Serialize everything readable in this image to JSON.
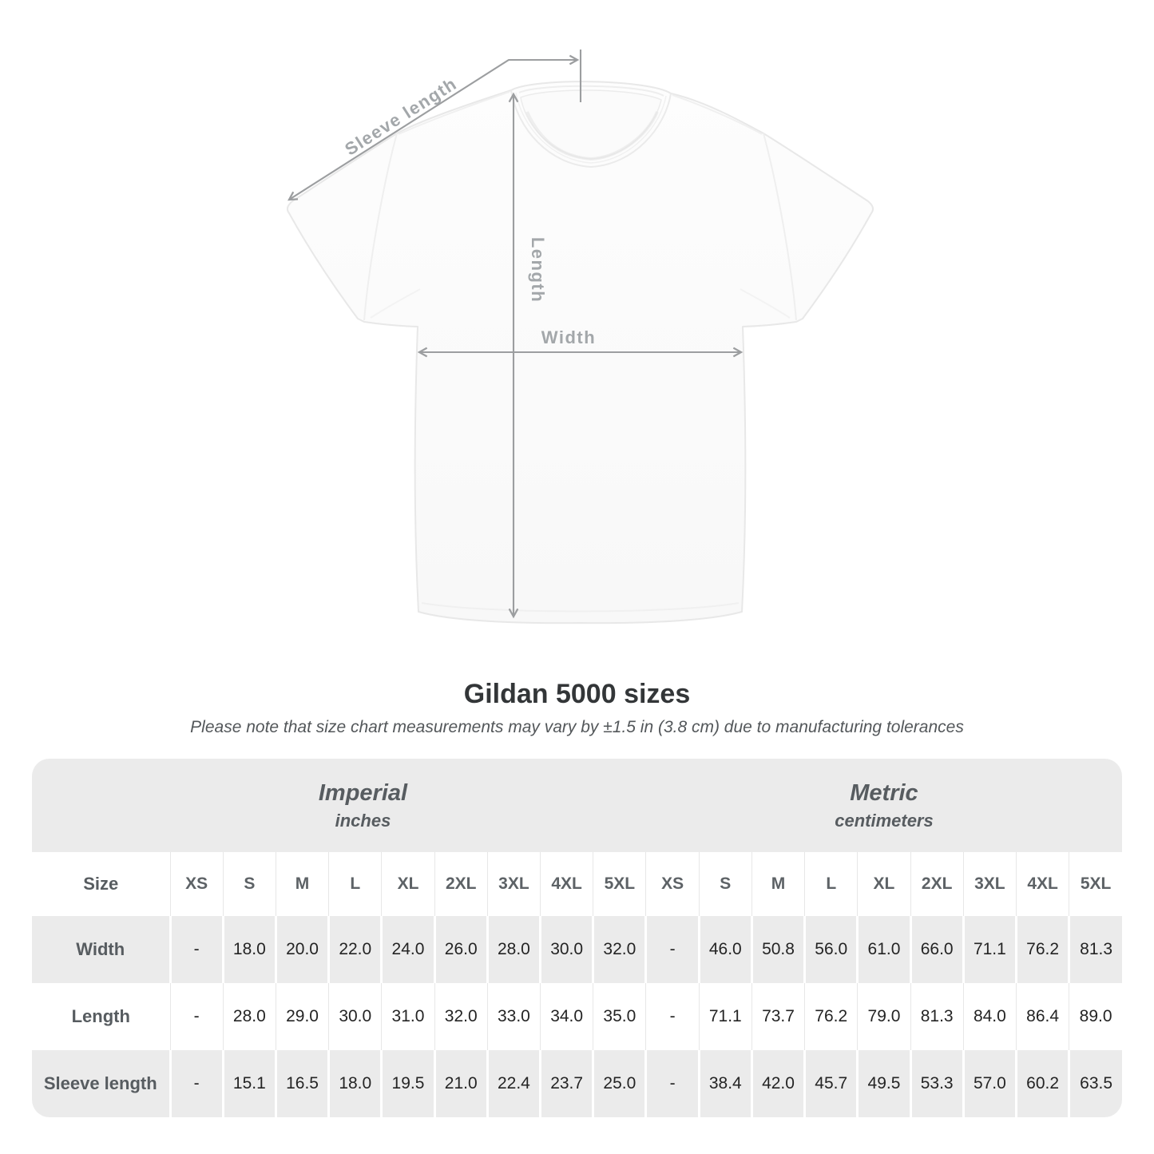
{
  "diagram": {
    "labels": {
      "sleeve_length": "Sleeve length",
      "length": "Length",
      "width": "Width"
    }
  },
  "title": "Gildan 5000 sizes",
  "subtitle": "Please note that size chart measurements may vary by ±1.5 in (3.8 cm) due to manufacturing tolerances",
  "table": {
    "size_header": "Size",
    "groups": [
      {
        "label": "Imperial",
        "unit": "inches"
      },
      {
        "label": "Metric",
        "unit": "centimeters"
      }
    ],
    "sizes": [
      "XS",
      "S",
      "M",
      "L",
      "XL",
      "2XL",
      "3XL",
      "4XL",
      "5XL"
    ],
    "rows": [
      {
        "label": "Width",
        "imperial": [
          "-",
          "18.0",
          "20.0",
          "22.0",
          "24.0",
          "26.0",
          "28.0",
          "30.0",
          "32.0"
        ],
        "metric": [
          "-",
          "46.0",
          "50.8",
          "56.0",
          "61.0",
          "66.0",
          "71.1",
          "76.2",
          "81.3"
        ]
      },
      {
        "label": "Length",
        "imperial": [
          "-",
          "28.0",
          "29.0",
          "30.0",
          "31.0",
          "32.0",
          "33.0",
          "34.0",
          "35.0"
        ],
        "metric": [
          "-",
          "71.1",
          "73.7",
          "76.2",
          "79.0",
          "81.3",
          "84.0",
          "86.4",
          "89.0"
        ]
      },
      {
        "label": "Sleeve length",
        "imperial": [
          "-",
          "15.1",
          "16.5",
          "18.0",
          "19.5",
          "21.0",
          "22.4",
          "23.7",
          "25.0"
        ],
        "metric": [
          "-",
          "38.4",
          "42.0",
          "45.7",
          "49.5",
          "53.3",
          "57.0",
          "60.2",
          "63.5"
        ]
      }
    ]
  },
  "colors": {
    "band_gray": "#ebebeb",
    "value_text": "#242424",
    "heading_text": "#575c60",
    "arrow_gray": "#9c9ea0",
    "diagram_label_gray": "#a3a7aa"
  }
}
